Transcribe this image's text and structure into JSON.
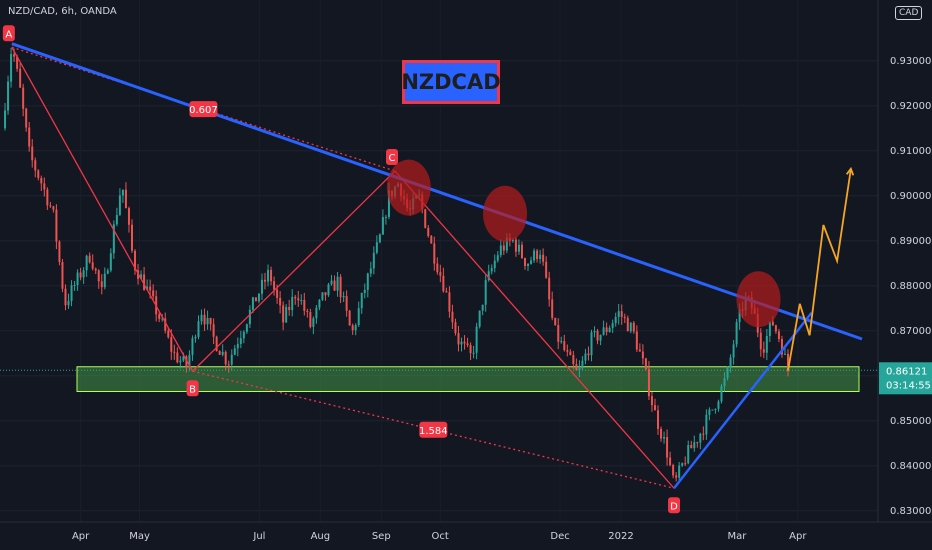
{
  "header": {
    "symbol": "NZD/CAD, 6h, OANDA"
  },
  "title_badge": "NZDCAD",
  "currency": "CAD",
  "colors": {
    "background": "#131722",
    "bull": "#26a69a",
    "bear": "#ef5350",
    "trendline": "#2962ff",
    "pattern": "#f23645",
    "zone_fill": "#4caf50",
    "zone_border": "#b2ff59",
    "projection": "#f5a623",
    "circle": "#b71c1c",
    "axis_text": "#d1d4dc"
  },
  "chart_data": {
    "type": "candlestick",
    "title": "NZDCAD",
    "x_ticks": [
      "Apr",
      "May",
      "Jul",
      "Aug",
      "Sep",
      "Oct",
      "Dec",
      "2022",
      "Mar",
      "Apr"
    ],
    "y_ticks": [
      "0.93000",
      "0.92000",
      "0.91000",
      "0.90000",
      "0.89000",
      "0.88000",
      "0.87000",
      "0.86000",
      "0.85000",
      "0.84000",
      "0.83000"
    ],
    "y_range": [
      0.8275,
      0.9435
    ],
    "last_price": "0.86121",
    "countdown": "03:14:55",
    "price_path": [
      [
        "Feb 20",
        0.915
      ],
      [
        "Feb 25",
        0.9335
      ],
      [
        "Mar 01",
        0.924
      ],
      [
        "Mar 06",
        0.909
      ],
      [
        "Mar 12",
        0.903
      ],
      [
        "Mar 18",
        0.896
      ],
      [
        "Mar 24",
        0.876
      ],
      [
        "Mar 30",
        0.881
      ],
      [
        "Apr 06",
        0.887
      ],
      [
        "Apr 12",
        0.878
      ],
      [
        "Apr 18",
        0.893
      ],
      [
        "Apr 22",
        0.903
      ],
      [
        "Apr 28",
        0.885
      ],
      [
        "May 05",
        0.879
      ],
      [
        "May 12",
        0.872
      ],
      [
        "May 18",
        0.865
      ],
      [
        "May 25",
        0.862
      ],
      [
        "Jun 01",
        0.875
      ],
      [
        "Jun 08",
        0.868
      ],
      [
        "Jun 15",
        0.863
      ],
      [
        "Jun 22",
        0.87
      ],
      [
        "Jun 29",
        0.877
      ],
      [
        "Jul 06",
        0.883
      ],
      [
        "Jul 13",
        0.872
      ],
      [
        "Jul 20",
        0.879
      ],
      [
        "Jul 27",
        0.871
      ],
      [
        "Aug 03",
        0.878
      ],
      [
        "Aug 10",
        0.881
      ],
      [
        "Aug 17",
        0.869
      ],
      [
        "Aug 24",
        0.88
      ],
      [
        "Aug 31",
        0.89
      ],
      [
        "Sep 05",
        0.9
      ],
      [
        "Sep 10",
        0.903
      ],
      [
        "Sep 15",
        0.896
      ],
      [
        "Sep 20",
        0.9
      ],
      [
        "Sep 27",
        0.888
      ],
      [
        "Oct 03",
        0.88
      ],
      [
        "Oct 10",
        0.868
      ],
      [
        "Oct 17",
        0.864
      ],
      [
        "Oct 24",
        0.88
      ],
      [
        "Oct 31",
        0.888
      ],
      [
        "Nov 07",
        0.89
      ],
      [
        "Nov 14",
        0.885
      ],
      [
        "Nov 21",
        0.888
      ],
      [
        "Nov 28",
        0.87
      ],
      [
        "Dec 05",
        0.864
      ],
      [
        "Dec 10",
        0.86
      ],
      [
        "Dec 17",
        0.868
      ],
      [
        "Dec 24",
        0.87
      ],
      [
        "Dec 31",
        0.874
      ],
      [
        "Jan 07",
        0.87
      ],
      [
        "Jan 12",
        0.863
      ],
      [
        "Jan 18",
        0.852
      ],
      [
        "Jan 24",
        0.844
      ],
      [
        "Jan 28",
        0.8355
      ],
      [
        "Feb 03",
        0.842
      ],
      [
        "Feb 10",
        0.847
      ],
      [
        "Feb 17",
        0.853
      ],
      [
        "Feb 24",
        0.86
      ],
      [
        "Mar 01",
        0.871
      ],
      [
        "Mar 05",
        0.877
      ],
      [
        "Mar 09",
        0.875
      ],
      [
        "Mar 14",
        0.866
      ],
      [
        "Mar 19",
        0.872
      ],
      [
        "Mar 23",
        0.868
      ],
      [
        "Mar 27",
        0.8612
      ]
    ],
    "support_zone": [
      0.8565,
      0.862
    ],
    "descending_trendline": [
      [
        "Feb 25",
        0.9338
      ],
      [
        "Apr 15",
        0.871
      ]
    ],
    "ascending_trendline": [
      [
        "Jan 28",
        0.835
      ],
      [
        "Apr 08",
        0.874
      ]
    ],
    "pattern_points": [
      {
        "label": "A",
        "date": "Feb 25",
        "price": 0.933
      },
      {
        "label": "B",
        "date": "May 28",
        "price": 0.861
      },
      {
        "label": "C",
        "date": "Sep 08",
        "price": 0.9055
      },
      {
        "label": "D",
        "date": "Jan 28",
        "price": 0.835
      }
    ],
    "ratios": [
      {
        "label": "0.607",
        "between": [
          "A",
          "C"
        ]
      },
      {
        "label": "1.584",
        "between": [
          "B",
          "D"
        ]
      }
    ],
    "resistance_circles": [
      {
        "date": "Sep 15",
        "price": 0.9018
      },
      {
        "date": "Nov 03",
        "price": 0.896
      },
      {
        "date": "Mar 12",
        "price": 0.877
      }
    ],
    "projection_path": [
      [
        "Mar 27",
        0.8612
      ],
      [
        "Apr 02",
        0.876
      ],
      [
        "Apr 07",
        0.869
      ],
      [
        "Apr 14",
        0.8935
      ],
      [
        "Apr 21",
        0.8855
      ],
      [
        "Apr 28",
        0.906
      ]
    ]
  }
}
